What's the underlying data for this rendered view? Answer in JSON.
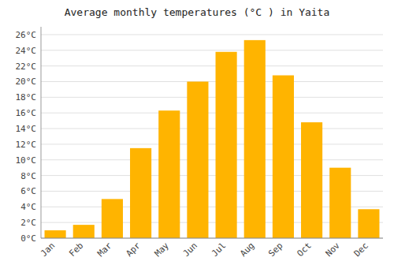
{
  "chart_data": {
    "type": "bar",
    "title": "Average monthly temperatures (°C ) in Yaita",
    "categories": [
      "Jan",
      "Feb",
      "Mar",
      "Apr",
      "May",
      "Jun",
      "Jul",
      "Aug",
      "Sep",
      "Oct",
      "Nov",
      "Dec"
    ],
    "values": [
      1.0,
      1.7,
      5.0,
      11.5,
      16.3,
      20.0,
      23.8,
      25.3,
      20.8,
      14.8,
      9.0,
      3.7
    ],
    "color": "#ffb400",
    "ylim": [
      0,
      27
    ],
    "yticks": [
      {
        "value": 0,
        "label": "0°C"
      },
      {
        "value": 2,
        "label": "2°C"
      },
      {
        "value": 4,
        "label": "4°C"
      },
      {
        "value": 6,
        "label": "6°C"
      },
      {
        "value": 8,
        "label": "8°C"
      },
      {
        "value": 10,
        "label": "10°C"
      },
      {
        "value": 12,
        "label": "12°C"
      },
      {
        "value": 14,
        "label": "14°C"
      },
      {
        "value": 16,
        "label": "16°C"
      },
      {
        "value": 18,
        "label": "18°C"
      },
      {
        "value": 20,
        "label": "20°C"
      },
      {
        "value": 22,
        "label": "22°C"
      },
      {
        "value": 24,
        "label": "24°C"
      },
      {
        "value": 26,
        "label": "26°C"
      }
    ],
    "grid": true
  }
}
